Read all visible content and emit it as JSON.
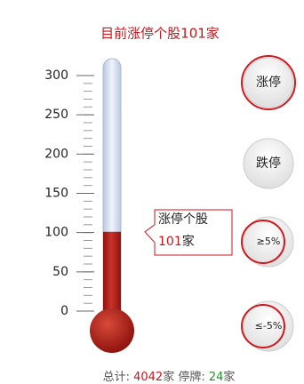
{
  "chart_data": {
    "type": "thermometer",
    "title": "目前涨停个股101家",
    "value": 101,
    "ylim": [
      0,
      300
    ],
    "yticks": [
      0,
      50,
      100,
      150,
      200,
      250,
      300
    ],
    "minor_yticks": [
      0,
      10,
      20,
      30,
      40,
      50,
      60,
      70,
      80,
      90,
      100,
      110,
      120,
      130,
      140,
      150,
      160,
      170,
      180,
      190,
      200,
      210,
      220,
      230,
      240,
      250,
      260,
      270,
      280,
      290,
      300
    ],
    "color": "#b51a14",
    "tube_color": "#d3def0",
    "callout": {
      "label": "涨停个股",
      "unit": "家"
    }
  },
  "buttons": [
    "涨停",
    "跌停",
    "≥5%",
    "≤-5%"
  ],
  "footer": {
    "total_label": "总计: ",
    "total": 4042,
    "unit": "家",
    "suspended_label": " 停牌: ",
    "suspended": 24
  }
}
